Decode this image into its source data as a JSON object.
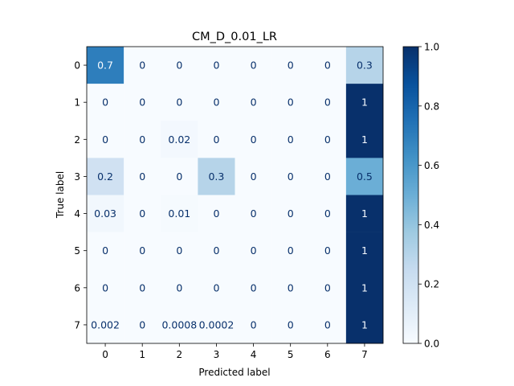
{
  "chart_data": {
    "type": "heatmap",
    "title": "CM_D_0.01_LR",
    "xlabel": "Predicted label",
    "ylabel": "True label",
    "x_categories": [
      "0",
      "1",
      "2",
      "3",
      "4",
      "5",
      "6",
      "7"
    ],
    "y_categories": [
      "0",
      "1",
      "2",
      "3",
      "4",
      "5",
      "6",
      "7"
    ],
    "values": [
      [
        0.7,
        0,
        0,
        0,
        0,
        0,
        0,
        0.3
      ],
      [
        0,
        0,
        0,
        0,
        0,
        0,
        0,
        1
      ],
      [
        0,
        0,
        0.02,
        0,
        0,
        0,
        0,
        1
      ],
      [
        0.2,
        0,
        0,
        0.3,
        0,
        0,
        0,
        0.5
      ],
      [
        0.03,
        0,
        0.01,
        0,
        0,
        0,
        0,
        1
      ],
      [
        0,
        0,
        0,
        0,
        0,
        0,
        0,
        1
      ],
      [
        0,
        0,
        0,
        0,
        0,
        0,
        0,
        1
      ],
      [
        0.002,
        0,
        0.0008,
        0.0002,
        0,
        0,
        0,
        1
      ]
    ],
    "cell_labels": [
      [
        "0.7",
        "0",
        "0",
        "0",
        "0",
        "0",
        "0",
        "0.3"
      ],
      [
        "0",
        "0",
        "0",
        "0",
        "0",
        "0",
        "0",
        "1"
      ],
      [
        "0",
        "0",
        "0.02",
        "0",
        "0",
        "0",
        "0",
        "1"
      ],
      [
        "0.2",
        "0",
        "0",
        "0.3",
        "0",
        "0",
        "0",
        "0.5"
      ],
      [
        "0.03",
        "0",
        "0.01",
        "0",
        "0",
        "0",
        "0",
        "1"
      ],
      [
        "0",
        "0",
        "0",
        "0",
        "0",
        "0",
        "0",
        "1"
      ],
      [
        "0",
        "0",
        "0",
        "0",
        "0",
        "0",
        "0",
        "1"
      ],
      [
        "0.002",
        "0",
        "0.0008",
        "0.0002",
        "0",
        "0",
        "0",
        "1"
      ]
    ],
    "colorbar": {
      "colormap": "Blues",
      "range": [
        0.0,
        1.0
      ],
      "ticks": [
        0.0,
        0.2,
        0.4,
        0.6,
        0.8,
        1.0
      ],
      "tick_labels": [
        "0.0",
        "0.2",
        "0.4",
        "0.6",
        "0.8",
        "1.0"
      ]
    },
    "grid": false,
    "legend": "none",
    "colors": {
      "low": "#f7fbff",
      "high": "#08306b",
      "text_dark_bg": "#f7fbff",
      "text_light_bg": "#08306b"
    }
  }
}
